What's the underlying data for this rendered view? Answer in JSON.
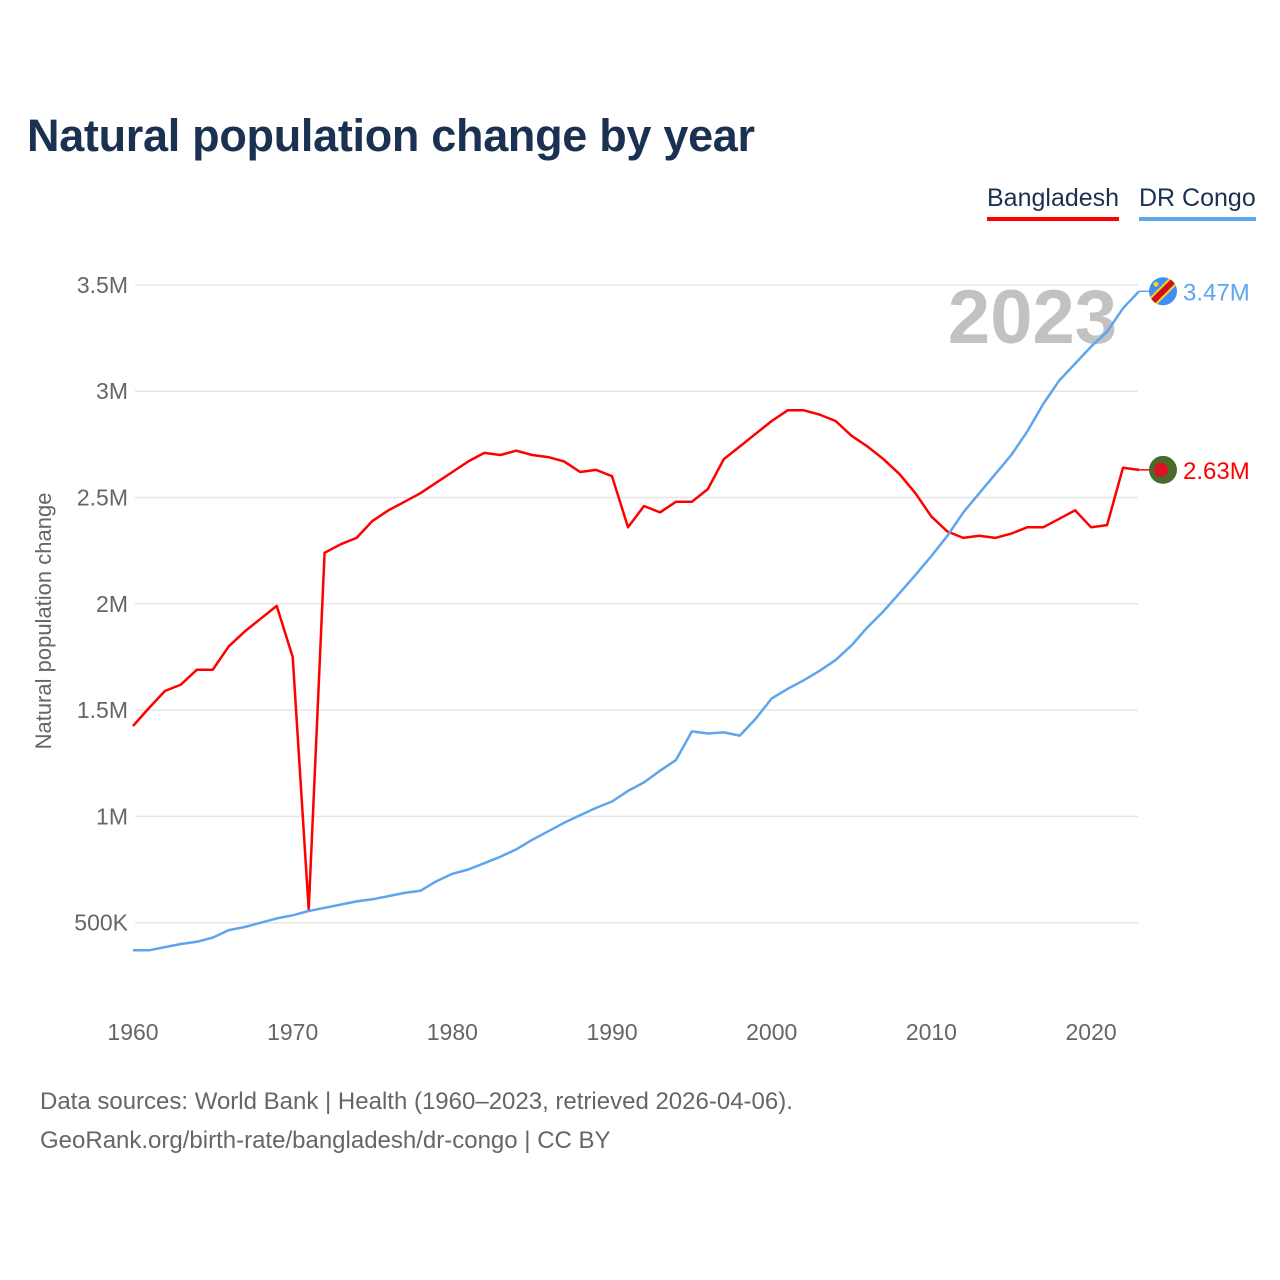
{
  "title": "Natural population change by year",
  "footer": {
    "line1": "Data sources: World Bank | Health (1960–2023, retrieved 2026-04-06).",
    "line2": "GeoRank.org/birth-rate/bangladesh/dr-congo | CC BY"
  },
  "chart_data": {
    "type": "line",
    "title": "Natural population change by year",
    "xlabel": "",
    "ylabel": "Natural population change",
    "year_watermark": "2023",
    "xlim": [
      1960,
      2023
    ],
    "ylim": [
      0.2,
      3.5
    ],
    "x_ticks": [
      1960,
      1970,
      1980,
      1990,
      2000,
      2010,
      2020
    ],
    "x_tick_labels": [
      "1960",
      "1970",
      "1980",
      "1990",
      "2000",
      "2010",
      "2020"
    ],
    "y_ticks": [
      0.5,
      1,
      1.5,
      2,
      2.5,
      3,
      3.5
    ],
    "y_tick_labels": [
      "500K",
      "1M",
      "1.5M",
      "2M",
      "2.5M",
      "3M",
      "3.5M"
    ],
    "grid": true,
    "legend_position": "top-right",
    "units": "millions",
    "series": [
      {
        "name": "Bangladesh",
        "color": "#ff0000",
        "flag": "bangladesh-flag",
        "end_label": "2.63M",
        "x_start": 1960,
        "values": [
          1.425,
          1.51,
          1.59,
          1.62,
          1.69,
          1.69,
          1.8,
          1.87,
          1.93,
          1.99,
          1.75,
          0.56,
          2.24,
          2.28,
          2.31,
          2.39,
          2.44,
          2.48,
          2.52,
          2.57,
          2.62,
          2.67,
          2.71,
          2.7,
          2.72,
          2.7,
          2.69,
          2.67,
          2.62,
          2.63,
          2.6,
          2.36,
          2.46,
          2.43,
          2.48,
          2.48,
          2.54,
          2.68,
          2.74,
          2.8,
          2.86,
          2.91,
          2.91,
          2.89,
          2.86,
          2.79,
          2.74,
          2.68,
          2.61,
          2.52,
          2.41,
          2.34,
          2.31,
          2.32,
          2.31,
          2.33,
          2.36,
          2.36,
          2.4,
          2.44,
          2.36,
          2.37,
          2.64,
          2.63
        ]
      },
      {
        "name": "DR Congo",
        "color": "#5ea5ee",
        "flag": "dr-congo-flag",
        "end_label": "3.47M",
        "x_start": 1960,
        "values": [
          0.37,
          0.37,
          0.385,
          0.4,
          0.41,
          0.43,
          0.465,
          0.48,
          0.5,
          0.52,
          0.535,
          0.555,
          0.57,
          0.585,
          0.6,
          0.61,
          0.625,
          0.64,
          0.65,
          0.695,
          0.73,
          0.75,
          0.78,
          0.81,
          0.845,
          0.89,
          0.93,
          0.97,
          1.005,
          1.04,
          1.07,
          1.12,
          1.16,
          1.215,
          1.265,
          1.4,
          1.39,
          1.395,
          1.38,
          1.46,
          1.555,
          1.6,
          1.64,
          1.685,
          1.735,
          1.805,
          1.89,
          1.965,
          2.05,
          2.135,
          2.225,
          2.32,
          2.43,
          2.52,
          2.61,
          2.7,
          2.81,
          2.94,
          3.05,
          3.13,
          3.21,
          3.28,
          3.39,
          3.47
        ]
      }
    ]
  }
}
